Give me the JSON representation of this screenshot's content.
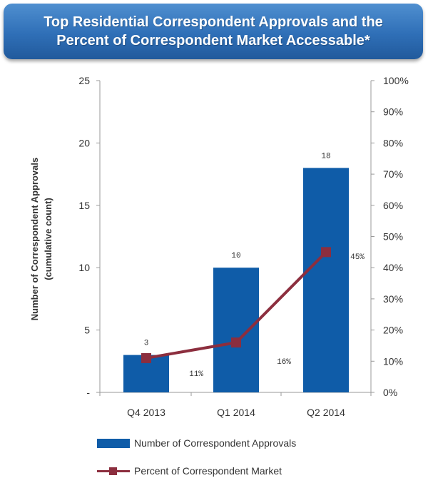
{
  "title": {
    "line1": "Top Residential Correspondent Approvals and the",
    "line2": "Percent of Correspondent Market Accessable*"
  },
  "colors": {
    "bar": "#0f5ca8",
    "line": "#8c2e3e",
    "banner": "#2f6fb7"
  },
  "chart_data": {
    "type": "bar",
    "categories": [
      "Q4 2013",
      "Q1 2014",
      "Q2 2014"
    ],
    "series": [
      {
        "name": "Number of Correspondent Approvals",
        "type": "bar",
        "axis": "left",
        "values": [
          3,
          10,
          18
        ],
        "labels": [
          "3",
          "10",
          "18"
        ]
      },
      {
        "name": "Percent of Correspondent Market",
        "type": "line",
        "axis": "right",
        "values": [
          11,
          16,
          45
        ],
        "labels": [
          "11%",
          "16%",
          "45%"
        ]
      }
    ],
    "ylabel": "Number of Correspondent  Approvals (cumulative count)",
    "ylim": [
      0,
      25
    ],
    "y_ticks": [
      "-",
      "5",
      "10",
      "15",
      "20",
      "25"
    ],
    "y2lim": [
      0,
      100
    ],
    "y2_ticks": [
      "0%",
      "10%",
      "20%",
      "30%",
      "40%",
      "50%",
      "60%",
      "70%",
      "80%",
      "90%",
      "100%"
    ],
    "grid": false,
    "legend_position": "bottom"
  }
}
